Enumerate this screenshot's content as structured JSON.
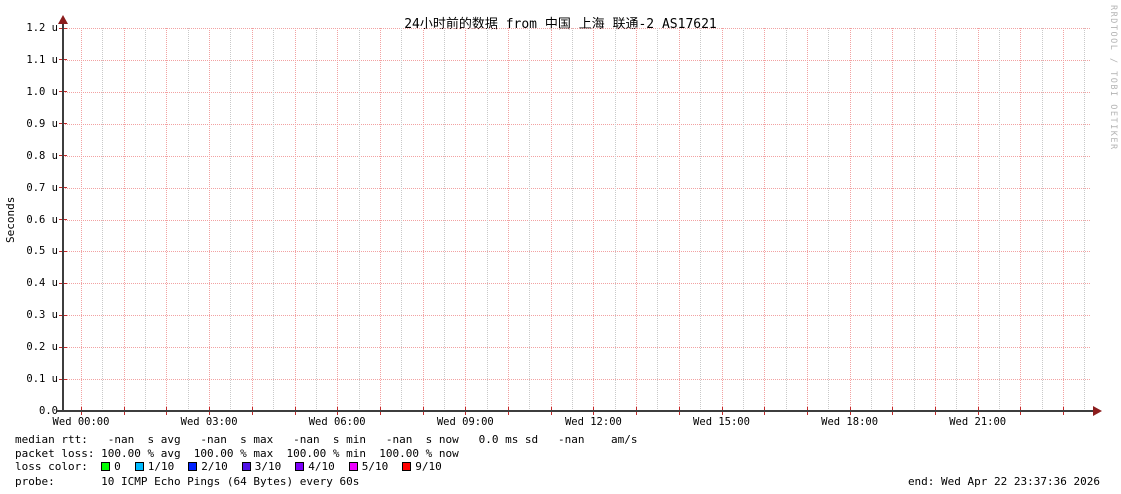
{
  "title": "24小时前的数据 from 中国 上海 联通-2 AS17621",
  "watermark": "RRDTOOL / TOBI OETIKER",
  "y_axis": {
    "label": "Seconds",
    "ticks": [
      "1.2 u",
      "1.1 u",
      "1.0 u",
      "0.9 u",
      "0.8 u",
      "0.7 u",
      "0.6 u",
      "0.5 u",
      "0.4 u",
      "0.3 u",
      "0.2 u",
      "0.1 u",
      "0.0"
    ]
  },
  "x_axis": {
    "ticks": [
      "Wed 00:00",
      "Wed 03:00",
      "Wed 06:00",
      "Wed 09:00",
      "Wed 12:00",
      "Wed 15:00",
      "Wed 18:00",
      "Wed 21:00"
    ]
  },
  "legend": {
    "median_rtt_line": "median rtt:   -nan  s avg   -nan  s max   -nan  s min   -nan  s now   0.0 ms sd   -nan    am/s",
    "packet_loss_line": "packet loss: 100.00 % avg  100.00 % max  100.00 % min  100.00 % now",
    "loss_color_prefix": "loss color:  ",
    "loss_colors": [
      {
        "label": "0",
        "color": "#00ff00"
      },
      {
        "label": "1/10",
        "color": "#00bbff"
      },
      {
        "label": "2/10",
        "color": "#0022ff"
      },
      {
        "label": "3/10",
        "color": "#5013e6"
      },
      {
        "label": "4/10",
        "color": "#7d00fa"
      },
      {
        "label": "5/10",
        "color": "#ee00ff"
      },
      {
        "label": "9/10",
        "color": "#ff0000"
      }
    ],
    "probe_line": "probe:       10 ICMP Echo Pings (64 Bytes) every 60s",
    "end_label": "end: Wed Apr 22 23:37:36 2026"
  },
  "chart_data": {
    "type": "line",
    "title": "24小时前的数据 from 中国 上海 联通-2 AS17621",
    "xlabel": "",
    "ylabel": "Seconds",
    "x_ticks": [
      "Wed 00:00",
      "Wed 03:00",
      "Wed 06:00",
      "Wed 09:00",
      "Wed 12:00",
      "Wed 15:00",
      "Wed 18:00",
      "Wed 21:00"
    ],
    "y_ticks": [
      "1.2 u",
      "1.1 u",
      "1.0 u",
      "0.9 u",
      "0.8 u",
      "0.7 u",
      "0.6 u",
      "0.5 u",
      "0.4 u",
      "0.3 u",
      "0.2 u",
      "0.1 u",
      "0.0"
    ],
    "ylim_seconds": [
      0,
      1.2e-06
    ],
    "grid": true,
    "legend_position": "bottom",
    "series": [
      {
        "name": "median rtt",
        "values": [],
        "note": "no data drawn: all samples -nan (100% packet loss over entire 24h window)"
      }
    ],
    "stats": {
      "median_rtt": {
        "avg": "-nan s",
        "max": "-nan s",
        "min": "-nan s",
        "now": "-nan s",
        "sd": "0.0 ms",
        "am_per_s": "-nan"
      },
      "packet_loss": {
        "avg": "100.00 %",
        "max": "100.00 %",
        "min": "100.00 %",
        "now": "100.00 %"
      },
      "probe": "10 ICMP Echo Pings (64 Bytes) every 60s",
      "end": "Wed Apr 22 23:37:36 2026"
    }
  }
}
